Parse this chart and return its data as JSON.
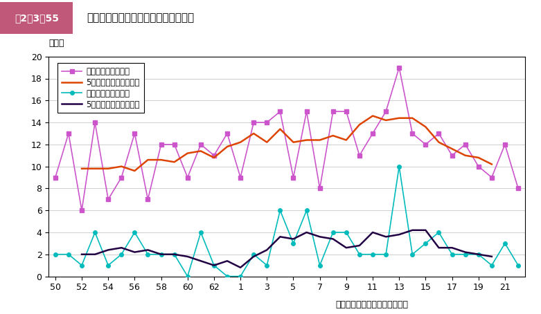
{
  "x_labels": [
    "50",
    "52",
    "54",
    "56",
    "58",
    "60",
    "62",
    "1",
    "3",
    "5",
    "7",
    "9",
    "11",
    "13",
    "15",
    "17",
    "19",
    "21"
  ],
  "approach_annual": [
    9,
    13,
    6,
    14,
    7,
    9,
    13,
    7,
    12,
    12,
    9,
    12,
    11,
    13,
    9,
    14,
    14,
    15,
    9,
    15,
    8,
    15,
    15,
    11,
    13,
    15,
    19,
    13,
    12,
    13,
    11,
    12,
    10,
    9,
    12,
    8
  ],
  "landfall_annual": [
    2,
    2,
    1,
    4,
    1,
    2,
    4,
    2,
    2,
    2,
    0,
    4,
    1,
    0,
    0,
    2,
    1,
    6,
    3,
    6,
    1,
    4,
    4,
    2,
    2,
    2,
    10,
    2,
    3,
    4,
    2,
    2,
    2,
    1,
    3,
    1
  ],
  "ylabel": "（個）",
  "xlabel_note": "（気象庁資料より内閉府作成）",
  "fig_label": "図2－3－55",
  "chart_title": "台風の日本への接近数と上陸数の推移",
  "color_approach_annual": "#cc55cc",
  "color_approach_ma": "#dd4400",
  "color_landfall_annual": "#00bbbb",
  "color_landfall_ma": "#220044",
  "legend_approach_annual": "各年日本への接近数",
  "legend_approach_ma": "5年移動平均（接近数）",
  "legend_landfall_annual": "各年日本への上陸数",
  "legend_landfall_ma": "5年移動平均（上陸数）",
  "ylim": [
    0,
    20
  ],
  "yticks": [
    0,
    2,
    4,
    6,
    8,
    10,
    12,
    14,
    16,
    18,
    20
  ],
  "header_bg": "#c0587a",
  "header_text_color": "#ffffff",
  "background_color": "#ffffff"
}
